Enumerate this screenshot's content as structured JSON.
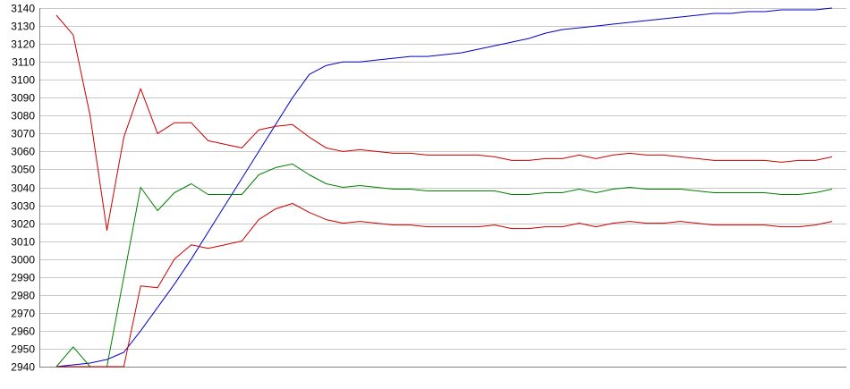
{
  "chart_data": {
    "type": "line",
    "title": "",
    "xlabel": "",
    "ylabel": "",
    "ylim": [
      2940,
      3140
    ],
    "yticks": [
      2940,
      2950,
      2960,
      2970,
      2980,
      2990,
      3000,
      3010,
      3020,
      3030,
      3040,
      3050,
      3060,
      3070,
      3080,
      3090,
      3100,
      3110,
      3120,
      3130,
      3140
    ],
    "grid": true,
    "legend": "none",
    "x": [
      0,
      1,
      2,
      3,
      4,
      5,
      6,
      7,
      8,
      9,
      10,
      11,
      12,
      13,
      14,
      15,
      16,
      17,
      18,
      19,
      20,
      21,
      22,
      23,
      24,
      25,
      26,
      27,
      28,
      29,
      30,
      31,
      32,
      33,
      34,
      35,
      36,
      37,
      38,
      39,
      40,
      41,
      42,
      43,
      44,
      45,
      46
    ],
    "series": [
      {
        "color": "#0000cc",
        "values": [
          2940,
          2941,
          2942,
          2944,
          2948,
          2960,
          2973,
          2986,
          3000,
          3015,
          3030,
          3045,
          3060,
          3075,
          3090,
          3103,
          3108,
          3110,
          3110,
          3111,
          3112,
          3113,
          3113,
          3114,
          3115,
          3117,
          3119,
          3121,
          3123,
          3126,
          3128,
          3129,
          3130,
          3131,
          3132,
          3133,
          3134,
          3135,
          3136,
          3137,
          3137,
          3138,
          3138,
          3139,
          3139,
          3139,
          3140
        ]
      },
      {
        "color": "#cc0000",
        "values": [
          3136,
          3125,
          3080,
          3016,
          3068,
          3095,
          3070,
          3076,
          3076,
          3066,
          3064,
          3062,
          3072,
          3074,
          3075,
          3068,
          3062,
          3060,
          3061,
          3060,
          3059,
          3059,
          3058,
          3058,
          3058,
          3058,
          3057,
          3055,
          3055,
          3056,
          3056,
          3058,
          3056,
          3058,
          3059,
          3058,
          3058,
          3057,
          3056,
          3055,
          3055,
          3055,
          3055,
          3054,
          3055,
          3055,
          3057
        ]
      },
      {
        "color": "#008000",
        "values": [
          2940,
          2951,
          2940,
          2940,
          2990,
          3040,
          3027,
          3037,
          3042,
          3036,
          3036,
          3036,
          3047,
          3051,
          3053,
          3047,
          3042,
          3040,
          3041,
          3040,
          3039,
          3039,
          3038,
          3038,
          3038,
          3038,
          3038,
          3036,
          3036,
          3037,
          3037,
          3039,
          3037,
          3039,
          3040,
          3039,
          3039,
          3039,
          3038,
          3037,
          3037,
          3037,
          3037,
          3036,
          3036,
          3037,
          3039
        ]
      },
      {
        "color": "#cc0000",
        "values": [
          2940,
          2940,
          2940,
          2940,
          2940,
          2985,
          2984,
          3000,
          3008,
          3006,
          3008,
          3010,
          3022,
          3028,
          3031,
          3026,
          3022,
          3020,
          3021,
          3020,
          3019,
          3019,
          3018,
          3018,
          3018,
          3018,
          3019,
          3017,
          3017,
          3018,
          3018,
          3020,
          3018,
          3020,
          3021,
          3020,
          3020,
          3021,
          3020,
          3019,
          3019,
          3019,
          3019,
          3018,
          3018,
          3019,
          3021
        ]
      }
    ]
  }
}
